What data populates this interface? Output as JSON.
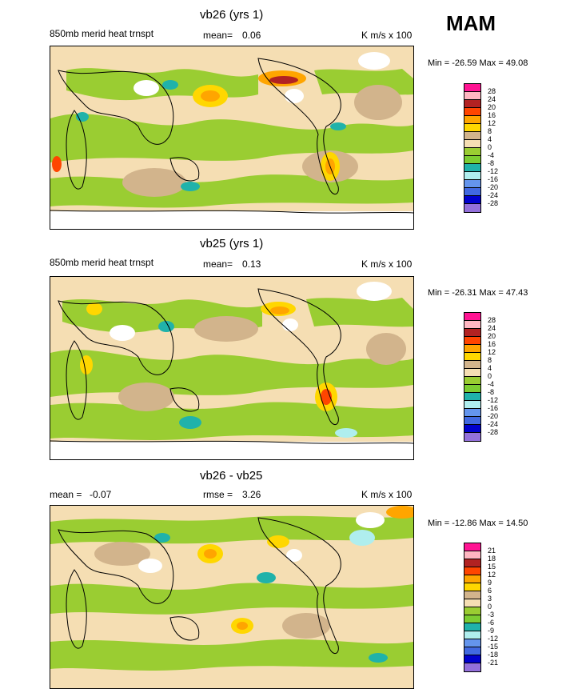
{
  "figure": {
    "season": "MAM"
  },
  "panels": [
    {
      "title": "vb26 (yrs 1)",
      "variable": "850mb merid heat trnspt",
      "mean_label": "mean=",
      "mean_value": "0.06",
      "units": "K m/s x 100",
      "minmax": "Min = -26.59 Max =  49.08",
      "levels": [
        "28",
        "24",
        "20",
        "16",
        "12",
        "8",
        "4",
        "0",
        "-4",
        "-8",
        "-12",
        "-16",
        "-20",
        "-24",
        "-28"
      ]
    },
    {
      "title": "vb25 (yrs 1)",
      "variable": "850mb merid heat trnspt",
      "mean_label": "mean=",
      "mean_value": "0.13",
      "units": "K m/s x 100",
      "minmax": "Min = -26.31 Max =  47.43",
      "levels": [
        "28",
        "24",
        "20",
        "16",
        "12",
        "8",
        "4",
        "0",
        "-4",
        "-8",
        "-12",
        "-16",
        "-20",
        "-24",
        "-28"
      ]
    },
    {
      "title": "vb26 - vb25",
      "mean_label": "mean =",
      "mean_value": "-0.07",
      "rmse_label": "rmse =",
      "rmse_value": "3.26",
      "units": "K m/s x 100",
      "minmax": "Min = -12.86 Max =  14.50",
      "levels": [
        "21",
        "18",
        "15",
        "12",
        "9",
        "6",
        "3",
        "0",
        "-3",
        "-6",
        "-9",
        "-12",
        "-15",
        "-18",
        "-21"
      ]
    }
  ],
  "colorbar_colors": [
    "#ff1493",
    "#ffb6c1",
    "#b22222",
    "#ff4500",
    "#ffa500",
    "#ffd700",
    "#d2b48c",
    "#f5deb3",
    "#9acd32",
    "#7ccd32",
    "#20b2aa",
    "#afeeee",
    "#6495ed",
    "#4169e1",
    "#0000cd",
    "#9370db"
  ]
}
